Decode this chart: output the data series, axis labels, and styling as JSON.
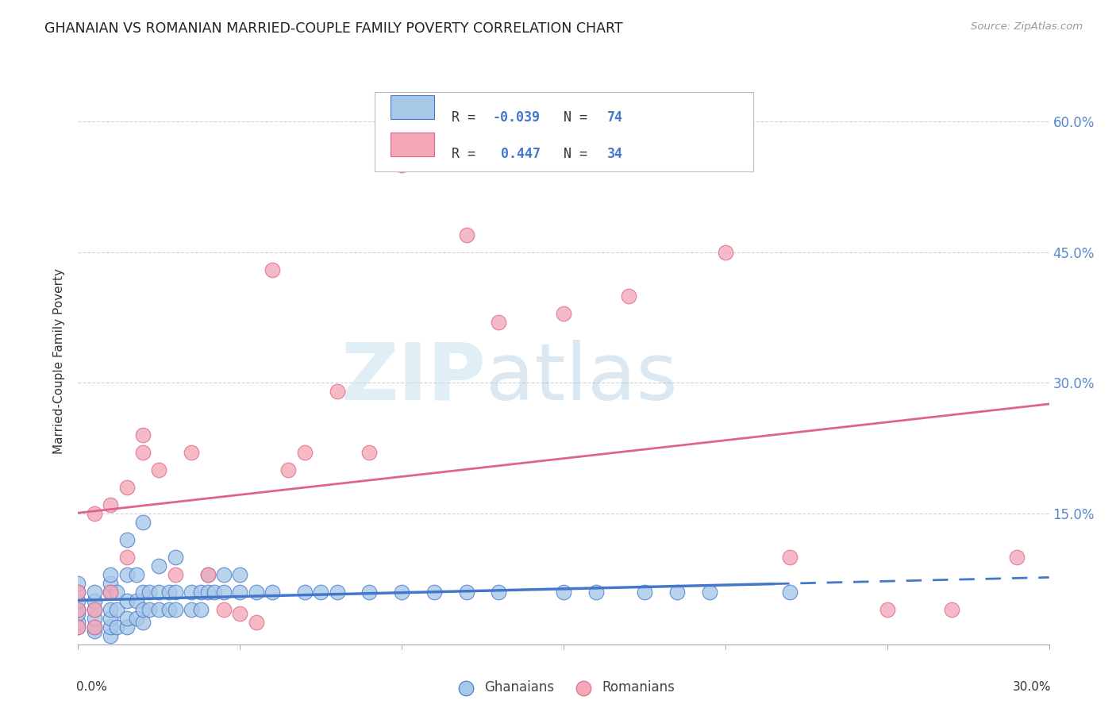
{
  "title": "GHANAIAN VS ROMANIAN MARRIED-COUPLE FAMILY POVERTY CORRELATION CHART",
  "source": "Source: ZipAtlas.com",
  "ylabel": "Married-Couple Family Poverty",
  "yticks": [
    0.0,
    0.15,
    0.3,
    0.45,
    0.6
  ],
  "ytick_labels": [
    "",
    "15.0%",
    "30.0%",
    "45.0%",
    "60.0%"
  ],
  "xlim": [
    0.0,
    0.3
  ],
  "ylim": [
    0.0,
    0.65
  ],
  "color_ghanaian": "#a8c8e8",
  "color_romanian": "#f4a8b8",
  "color_ghanaian_line": "#4477cc",
  "color_romanian_line": "#dd6688",
  "ghanaian_x": [
    0.0,
    0.0,
    0.0,
    0.0,
    0.0,
    0.0,
    0.0,
    0.005,
    0.005,
    0.005,
    0.005,
    0.005,
    0.005,
    0.01,
    0.01,
    0.01,
    0.01,
    0.01,
    0.01,
    0.01,
    0.012,
    0.012,
    0.012,
    0.015,
    0.015,
    0.015,
    0.015,
    0.015,
    0.018,
    0.018,
    0.018,
    0.02,
    0.02,
    0.02,
    0.02,
    0.022,
    0.022,
    0.025,
    0.025,
    0.025,
    0.028,
    0.028,
    0.03,
    0.03,
    0.03,
    0.035,
    0.035,
    0.038,
    0.038,
    0.04,
    0.04,
    0.042,
    0.045,
    0.045,
    0.05,
    0.05,
    0.055,
    0.06,
    0.07,
    0.075,
    0.08,
    0.09,
    0.1,
    0.11,
    0.12,
    0.13,
    0.15,
    0.16,
    0.175,
    0.185,
    0.195,
    0.22
  ],
  "ghanaian_y": [
    0.02,
    0.025,
    0.035,
    0.04,
    0.05,
    0.06,
    0.07,
    0.015,
    0.02,
    0.03,
    0.04,
    0.05,
    0.06,
    0.01,
    0.02,
    0.03,
    0.04,
    0.06,
    0.07,
    0.08,
    0.02,
    0.04,
    0.06,
    0.02,
    0.03,
    0.05,
    0.08,
    0.12,
    0.03,
    0.05,
    0.08,
    0.025,
    0.04,
    0.06,
    0.14,
    0.04,
    0.06,
    0.04,
    0.06,
    0.09,
    0.04,
    0.06,
    0.04,
    0.06,
    0.1,
    0.04,
    0.06,
    0.04,
    0.06,
    0.06,
    0.08,
    0.06,
    0.06,
    0.08,
    0.06,
    0.08,
    0.06,
    0.06,
    0.06,
    0.06,
    0.06,
    0.06,
    0.06,
    0.06,
    0.06,
    0.06,
    0.06,
    0.06,
    0.06,
    0.06,
    0.06,
    0.06
  ],
  "romanian_x": [
    0.0,
    0.0,
    0.0,
    0.005,
    0.005,
    0.005,
    0.01,
    0.01,
    0.015,
    0.015,
    0.02,
    0.02,
    0.025,
    0.03,
    0.035,
    0.04,
    0.045,
    0.05,
    0.055,
    0.06,
    0.065,
    0.07,
    0.08,
    0.09,
    0.1,
    0.12,
    0.13,
    0.15,
    0.17,
    0.2,
    0.22,
    0.25,
    0.27,
    0.29
  ],
  "romanian_y": [
    0.02,
    0.04,
    0.06,
    0.02,
    0.04,
    0.15,
    0.06,
    0.16,
    0.1,
    0.18,
    0.22,
    0.24,
    0.2,
    0.08,
    0.22,
    0.08,
    0.04,
    0.035,
    0.025,
    0.43,
    0.2,
    0.22,
    0.29,
    0.22,
    0.55,
    0.47,
    0.37,
    0.38,
    0.4,
    0.45,
    0.1,
    0.04,
    0.04,
    0.1
  ]
}
